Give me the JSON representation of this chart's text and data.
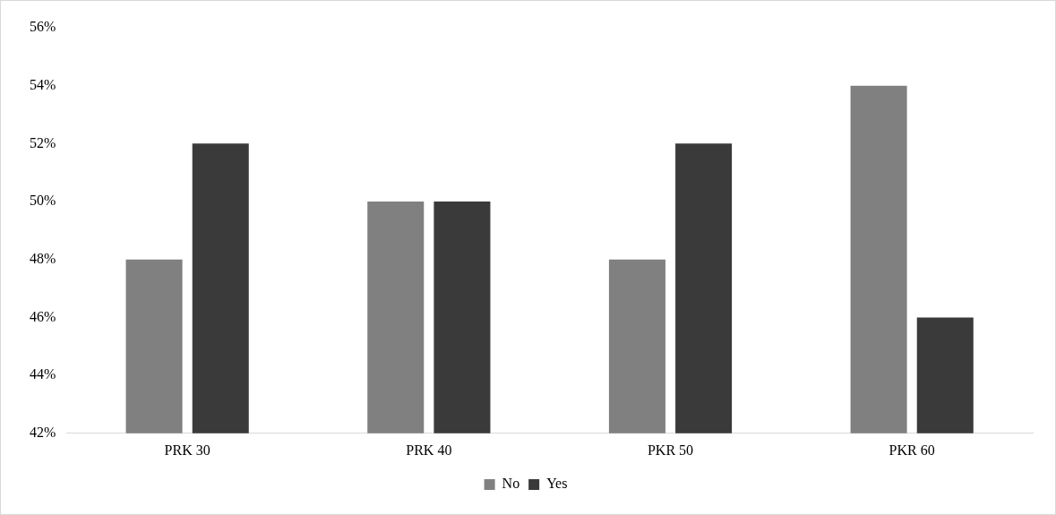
{
  "chart_data": {
    "type": "bar",
    "categories": [
      "PRK 30",
      "PRK 40",
      "PKR 50",
      "PKR 60"
    ],
    "series": [
      {
        "name": "No",
        "color": "#808080",
        "values": [
          48,
          50,
          48,
          54
        ]
      },
      {
        "name": "Yes",
        "color": "#3a3a3a",
        "values": [
          52,
          50,
          52,
          46
        ]
      }
    ],
    "ylim": [
      42,
      56
    ],
    "yticks": [
      {
        "value": 42,
        "label": "42%"
      },
      {
        "value": 44,
        "label": "44%"
      },
      {
        "value": 46,
        "label": "46%"
      },
      {
        "value": 48,
        "label": "48%"
      },
      {
        "value": 50,
        "label": "50%"
      },
      {
        "value": 52,
        "label": "52%"
      },
      {
        "value": 54,
        "label": "54%"
      },
      {
        "value": 56,
        "label": "56%"
      }
    ],
    "grid": false,
    "legend": "bottom"
  }
}
